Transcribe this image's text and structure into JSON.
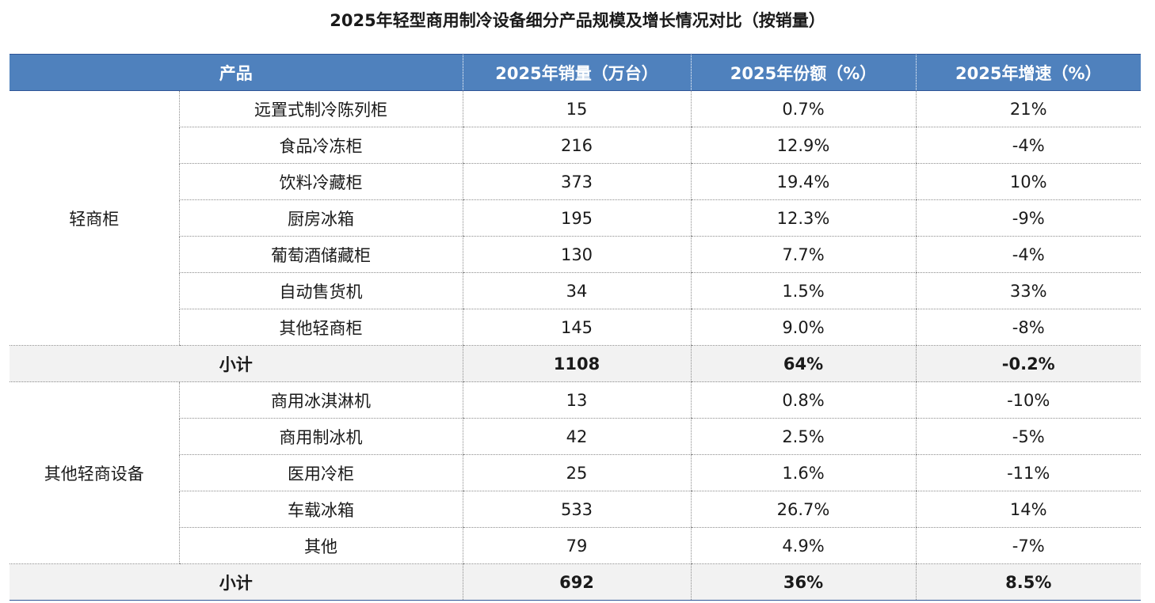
{
  "chart_data": {
    "type": "table",
    "title": "2025年轻型商用制冷设备细分产品规模及增长情况对比（按销量）",
    "columns": [
      "产品",
      "2025年销量（万台）",
      "2025年份额（%）",
      "2025年增速（%）"
    ],
    "groups": [
      {
        "name": "轻商柜",
        "rows": [
          {
            "product": "远置式制冷陈列柜",
            "sales": "15",
            "share": "0.7%",
            "growth": "21%"
          },
          {
            "product": "食品冷冻柜",
            "sales": "216",
            "share": "12.9%",
            "growth": "-4%"
          },
          {
            "product": "饮料冷藏柜",
            "sales": "373",
            "share": "19.4%",
            "growth": "10%"
          },
          {
            "product": "厨房冰箱",
            "sales": "195",
            "share": "12.3%",
            "growth": "-9%"
          },
          {
            "product": "葡萄酒储藏柜",
            "sales": "130",
            "share": "7.7%",
            "growth": "-4%"
          },
          {
            "product": "自动售货机",
            "sales": "34",
            "share": "1.5%",
            "growth": "33%"
          },
          {
            "product": "其他轻商柜",
            "sales": "145",
            "share": "9.0%",
            "growth": "-8%"
          }
        ],
        "subtotal": {
          "label": "小计",
          "sales": "1108",
          "share": "64%",
          "growth": "-0.2%"
        }
      },
      {
        "name": "其他轻商设备",
        "rows": [
          {
            "product": "商用冰淇淋机",
            "sales": "13",
            "share": "0.8%",
            "growth": "-10%"
          },
          {
            "product": "商用制冰机",
            "sales": "42",
            "share": "2.5%",
            "growth": "-5%"
          },
          {
            "product": "医用冷柜",
            "sales": "25",
            "share": "1.6%",
            "growth": "-11%"
          },
          {
            "product": "车载冰箱",
            "sales": "533",
            "share": "26.7%",
            "growth": "14%"
          },
          {
            "product": "其他",
            "sales": "79",
            "share": "4.9%",
            "growth": "-7%"
          }
        ],
        "subtotal": {
          "label": "小计",
          "sales": "692",
          "share": "36%",
          "growth": "8.5%"
        }
      }
    ]
  }
}
